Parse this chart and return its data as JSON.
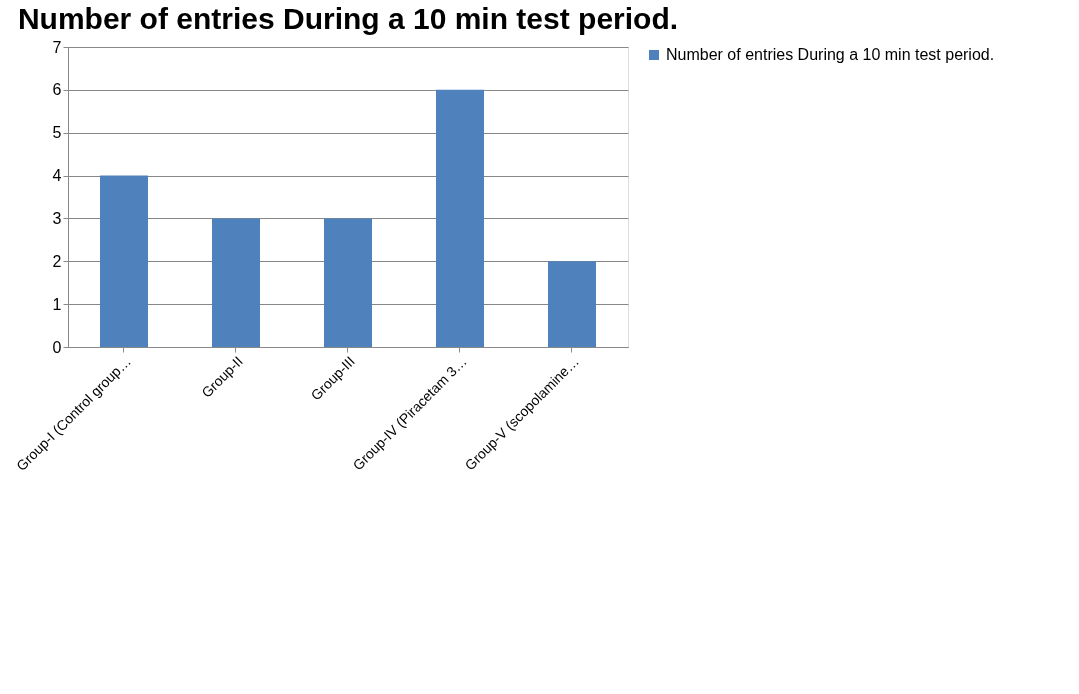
{
  "chart_data": {
    "type": "bar",
    "title": "Number of entries    During a 10 min test period.",
    "categories": [
      "Group-I (Control group…",
      "Group-II",
      "Group-III",
      "Group-IV (Piracetam 3…",
      "Group-V (scopolamine…"
    ],
    "series": [
      {
        "name": "Number of entries    During a 10 min test period.",
        "color": "#4f81bd",
        "values": [
          4,
          3,
          3,
          6,
          2
        ]
      }
    ],
    "ylim": [
      0,
      7
    ],
    "yticks": [
      0,
      1,
      2,
      3,
      4,
      5,
      6,
      7
    ],
    "grid": "y",
    "legend": "right"
  }
}
